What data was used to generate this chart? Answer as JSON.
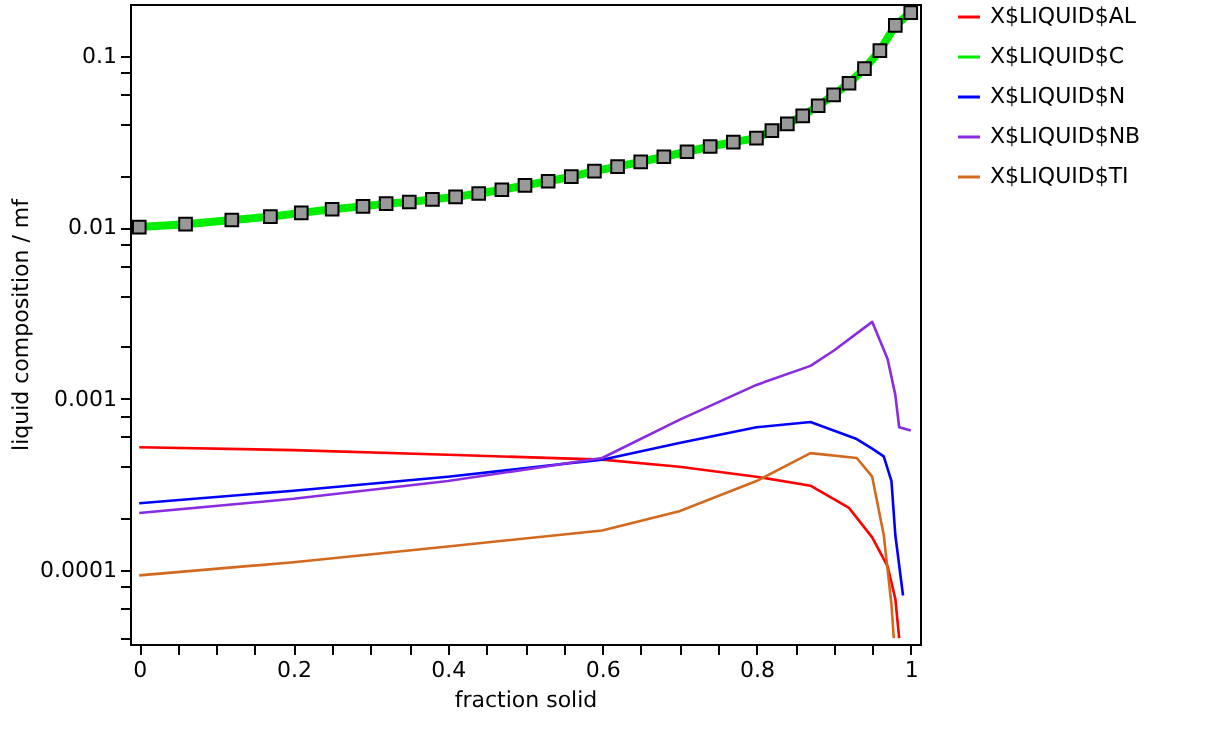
{
  "chart_data": {
    "type": "line",
    "xlabel": "fraction solid",
    "ylabel": "liquid composition / mf",
    "log": "y",
    "legend": "right",
    "xlim": [
      -0.012,
      1.012
    ],
    "ylim": [
      3.7e-05,
      0.2
    ],
    "xticks": [
      0,
      {
        "value": 0.05,
        "label": null
      },
      {
        "value": 0.1,
        "label": null
      },
      {
        "value": 0.15,
        "label": null
      },
      0.2,
      {
        "value": 0.25,
        "label": null
      },
      {
        "value": 0.3,
        "label": null
      },
      {
        "value": 0.35,
        "label": null
      },
      0.4,
      {
        "value": 0.45,
        "label": null
      },
      {
        "value": 0.5,
        "label": null
      },
      {
        "value": 0.55,
        "label": null
      },
      0.6,
      {
        "value": 0.65,
        "label": null
      },
      {
        "value": 0.7,
        "label": null
      },
      {
        "value": 0.75,
        "label": null
      },
      0.8,
      {
        "value": 0.85,
        "label": null
      },
      {
        "value": 0.9,
        "label": null
      },
      {
        "value": 0.95,
        "label": null
      },
      1
    ],
    "yticks": [
      {
        "value": 4e-05,
        "label": null
      },
      {
        "value": 6e-05,
        "label": null
      },
      {
        "value": 8e-05,
        "label": null
      },
      0.0001,
      {
        "value": 0.0002,
        "label": null
      },
      {
        "value": 0.0004,
        "label": null
      },
      {
        "value": 0.0006,
        "label": null
      },
      {
        "value": 0.0008,
        "label": null
      },
      0.001,
      {
        "value": 0.002,
        "label": null
      },
      {
        "value": 0.004,
        "label": null
      },
      {
        "value": 0.006,
        "label": null
      },
      {
        "value": 0.008,
        "label": null
      },
      0.01,
      {
        "value": 0.02,
        "label": null
      },
      {
        "value": 0.04,
        "label": null
      },
      {
        "value": 0.06,
        "label": null
      },
      {
        "value": 0.08,
        "label": null
      },
      0.1
    ],
    "series": [
      {
        "name": "X$LIQUID$AL",
        "color": "#ff0000",
        "x": [
          0,
          0.2,
          0.4,
          0.6,
          0.7,
          0.8,
          0.87,
          0.92,
          0.95,
          0.97,
          0.98,
          0.985
        ],
        "values": [
          0.00052,
          0.0005,
          0.00047,
          0.00044,
          0.0004,
          0.00035,
          0.00031,
          0.00023,
          0.000155,
          0.000105,
          6.8e-05,
          4e-05
        ]
      },
      {
        "name": "X$LIQUID$C",
        "color": "#00ee00",
        "marker": "square",
        "x": [
          0,
          0.06,
          0.12,
          0.17,
          0.21,
          0.25,
          0.29,
          0.32,
          0.35,
          0.38,
          0.41,
          0.44,
          0.47,
          0.5,
          0.53,
          0.56,
          0.59,
          0.62,
          0.65,
          0.68,
          0.71,
          0.74,
          0.77,
          0.8,
          0.82,
          0.84,
          0.86,
          0.88,
          0.9,
          0.92,
          0.94,
          0.96,
          0.98,
          1
        ],
        "values": [
          0.01,
          0.0104,
          0.011,
          0.0115,
          0.0121,
          0.0127,
          0.0132,
          0.0137,
          0.014,
          0.0145,
          0.015,
          0.0157,
          0.0165,
          0.0175,
          0.0185,
          0.0197,
          0.0212,
          0.0225,
          0.024,
          0.0257,
          0.0275,
          0.0295,
          0.0313,
          0.033,
          0.0365,
          0.04,
          0.0445,
          0.051,
          0.059,
          0.069,
          0.084,
          0.107,
          0.15,
          0.178
        ]
      },
      {
        "name": "X$LIQUID$N",
        "color": "#0000ff",
        "x": [
          0,
          0.2,
          0.4,
          0.6,
          0.7,
          0.8,
          0.87,
          0.93,
          0.95,
          0.965,
          0.975,
          0.98,
          0.99
        ],
        "values": [
          0.000245,
          0.00029,
          0.00035,
          0.00044,
          0.00055,
          0.00068,
          0.00073,
          0.00058,
          0.00051,
          0.00046,
          0.00033,
          0.00016,
          7.1e-05
        ]
      },
      {
        "name": "X$LIQUID$NB",
        "color": "#8a2be2",
        "x": [
          0,
          0.2,
          0.4,
          0.6,
          0.7,
          0.8,
          0.87,
          0.9,
          0.95,
          0.97,
          0.98,
          0.985,
          1
        ],
        "values": [
          0.000215,
          0.00026,
          0.00033,
          0.00045,
          0.00075,
          0.0012,
          0.00155,
          0.0019,
          0.0028,
          0.0017,
          0.00105,
          0.00068,
          0.00065
        ]
      },
      {
        "name": "X$LIQUID$TI",
        "color": "#d2691e",
        "x": [
          0,
          0.2,
          0.4,
          0.6,
          0.7,
          0.8,
          0.87,
          0.93,
          0.95,
          0.965,
          0.975,
          0.978
        ],
        "values": [
          9.3e-05,
          0.000111,
          0.000137,
          0.00017,
          0.00022,
          0.00033,
          0.00048,
          0.00045,
          0.00035,
          0.00016,
          6.3e-05,
          4e-05
        ]
      }
    ]
  }
}
